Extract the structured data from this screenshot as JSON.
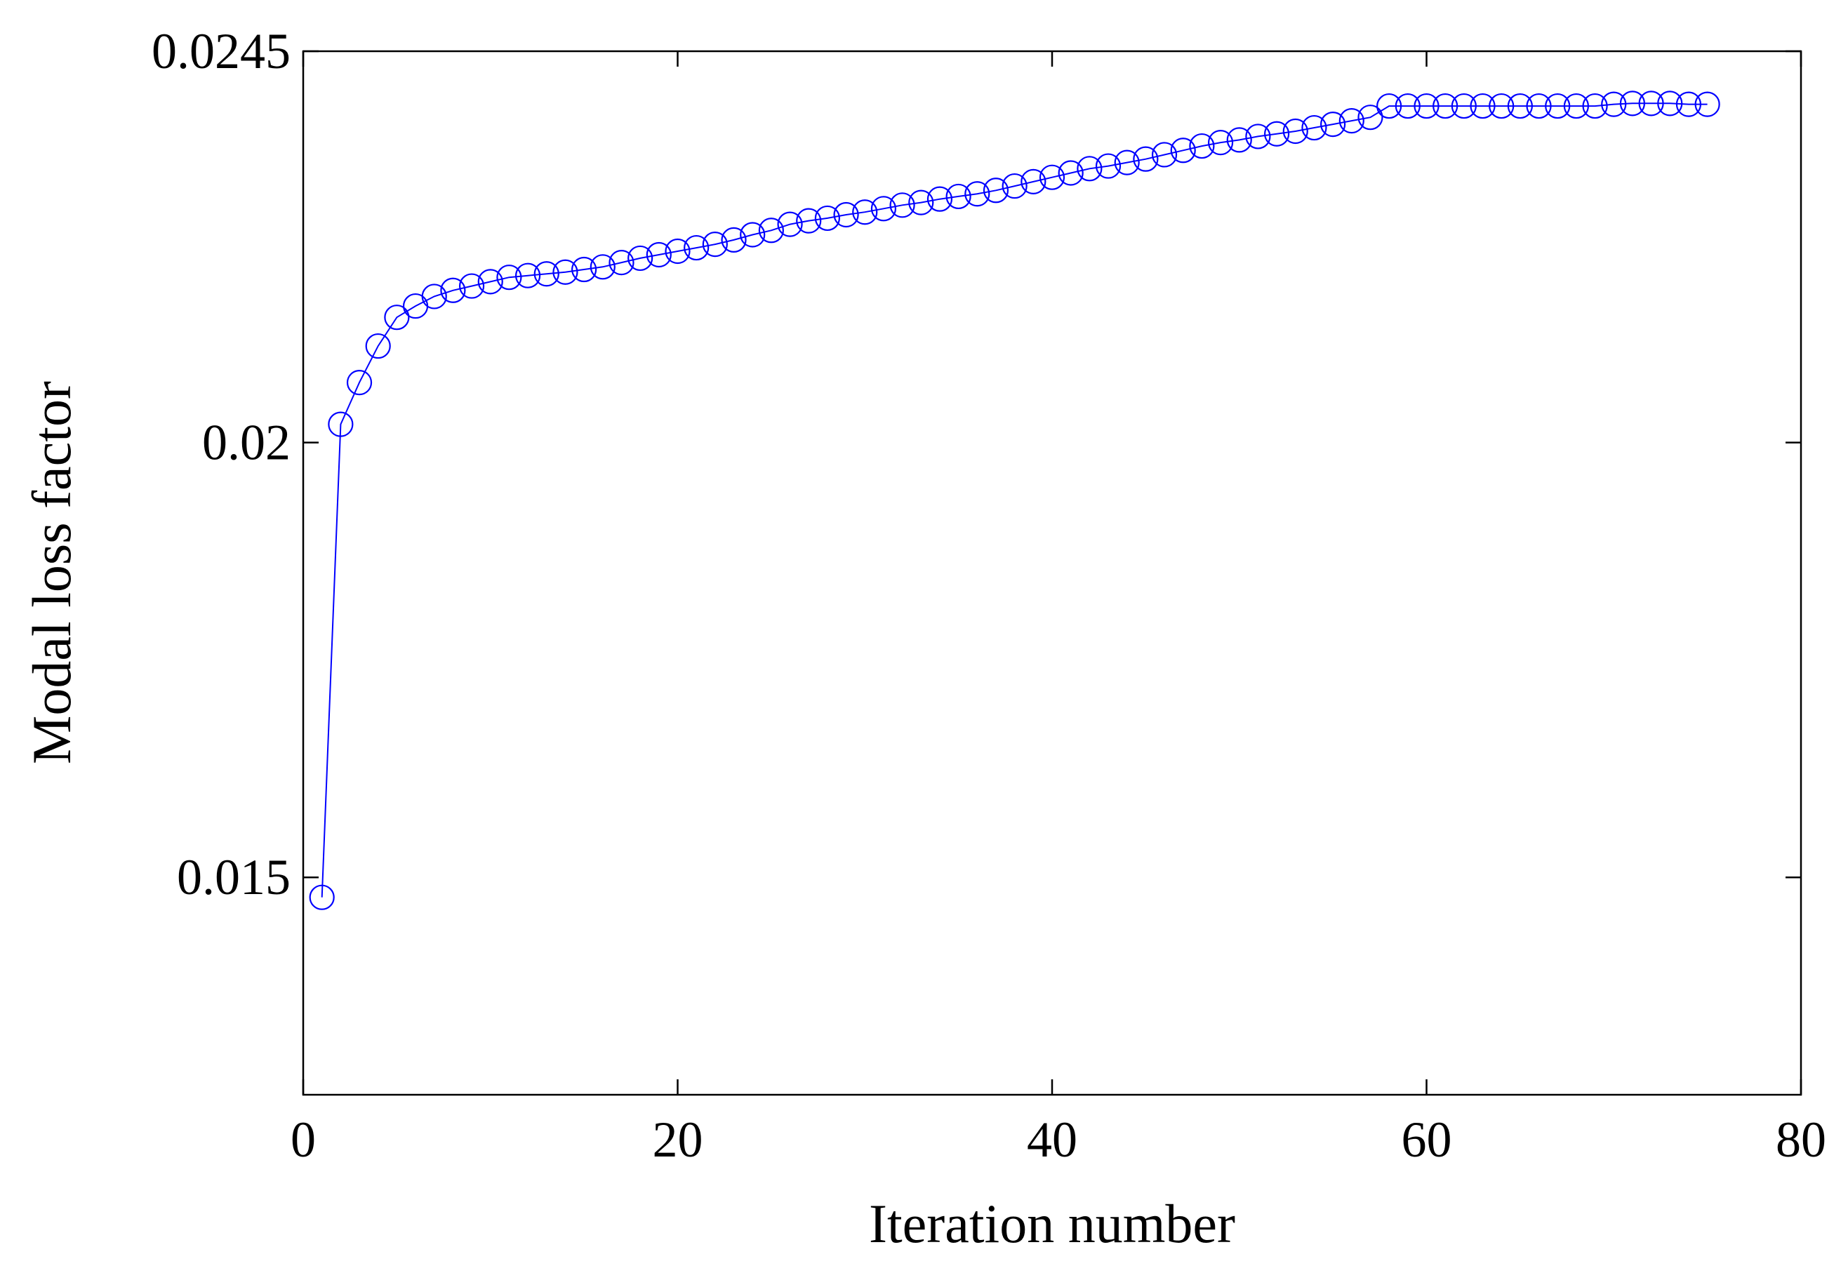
{
  "chart_data": {
    "type": "line",
    "title": "",
    "xlabel": "Iteration number",
    "ylabel": "Modal loss factor",
    "xlim": [
      0,
      80
    ],
    "ylim": [
      0.0125,
      0.0245
    ],
    "xticks": [
      0,
      20,
      40,
      60,
      80
    ],
    "xtick_labels": [
      "0",
      "20",
      "40",
      "60",
      "80"
    ],
    "yticks": [
      0.015,
      0.02,
      0.0245
    ],
    "ytick_labels": [
      "0.015",
      "0.02",
      "0.0245"
    ],
    "grid": false,
    "legend": "none",
    "marker": "open-circle",
    "series": [
      {
        "color": "#0000ff",
        "x": [
          1,
          2,
          3,
          4,
          5,
          6,
          7,
          8,
          9,
          10,
          11,
          12,
          13,
          14,
          15,
          16,
          17,
          18,
          19,
          20,
          21,
          22,
          23,
          24,
          25,
          26,
          27,
          28,
          29,
          30,
          31,
          32,
          33,
          34,
          35,
          36,
          37,
          38,
          39,
          40,
          41,
          42,
          43,
          44,
          45,
          46,
          47,
          48,
          49,
          50,
          51,
          52,
          53,
          54,
          55,
          56,
          57,
          58,
          59,
          60,
          61,
          62,
          63,
          64,
          65,
          66,
          67,
          68,
          69,
          70,
          71,
          72,
          73,
          74,
          75
        ],
        "values": [
          0.01477,
          0.02021,
          0.02069,
          0.02111,
          0.02144,
          0.02157,
          0.02168,
          0.02175,
          0.0218,
          0.02185,
          0.0219,
          0.02192,
          0.02194,
          0.02196,
          0.02199,
          0.02202,
          0.02207,
          0.02212,
          0.02216,
          0.0222,
          0.02224,
          0.02228,
          0.02233,
          0.02239,
          0.02244,
          0.02251,
          0.02255,
          0.02258,
          0.02262,
          0.02265,
          0.02269,
          0.02273,
          0.02276,
          0.0228,
          0.02283,
          0.02286,
          0.0229,
          0.02295,
          0.023,
          0.02305,
          0.0231,
          0.02315,
          0.02318,
          0.02322,
          0.02326,
          0.02331,
          0.02336,
          0.02341,
          0.02345,
          0.02348,
          0.02352,
          0.02355,
          0.02358,
          0.02362,
          0.02366,
          0.0237,
          0.02374,
          0.02387,
          0.02387,
          0.02387,
          0.02387,
          0.02387,
          0.02387,
          0.02387,
          0.02387,
          0.02387,
          0.02387,
          0.02387,
          0.02387,
          0.02389,
          0.0239,
          0.0239,
          0.0239,
          0.02389,
          0.02389
        ]
      }
    ]
  }
}
